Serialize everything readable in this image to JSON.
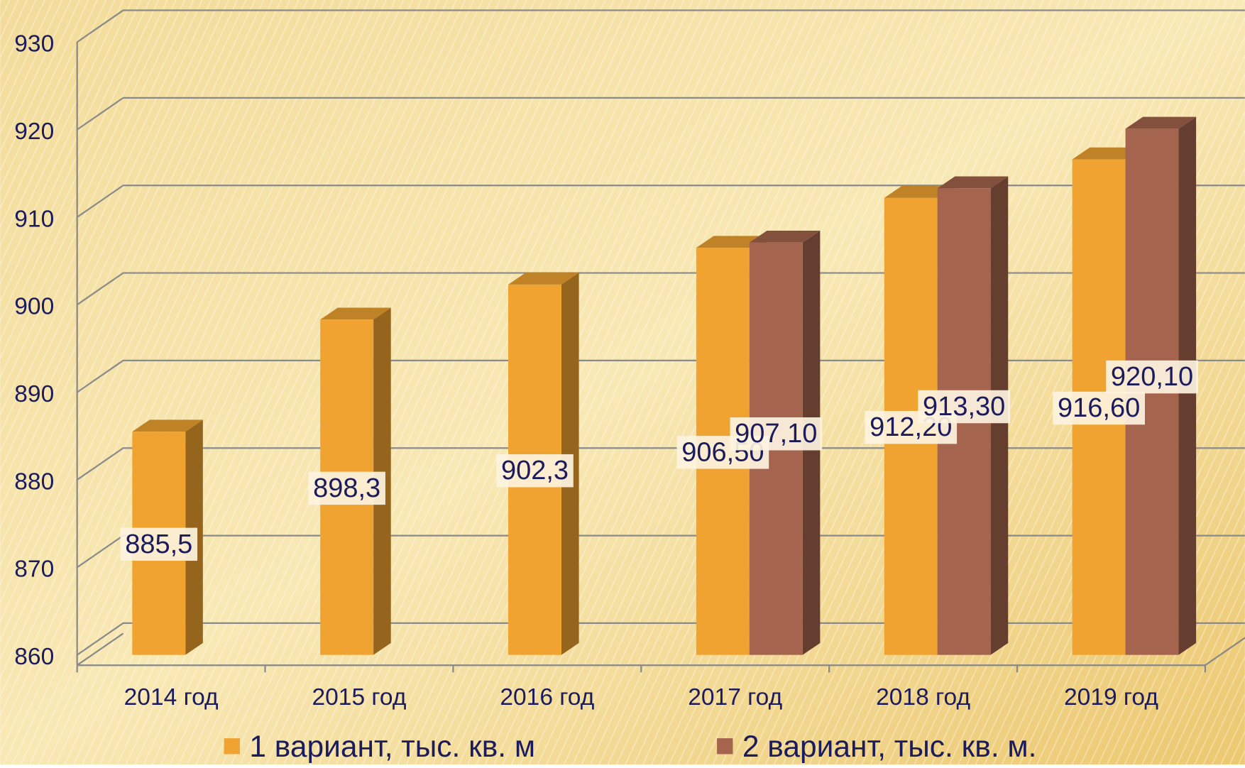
{
  "chart_data": {
    "type": "bar3d",
    "categories": [
      "2014 год",
      "2015 год",
      "2016 год",
      "2017 год",
      "2018 год",
      "2019 год"
    ],
    "series": [
      {
        "name": "1 вариант, тыс. кв. м",
        "color": "#f0a330",
        "values": [
          885.5,
          898.3,
          902.3,
          906.5,
          912.2,
          916.6
        ],
        "value_labels": [
          "885,5",
          "898,3",
          "902,3",
          "906,50",
          "912,20",
          "916,60"
        ]
      },
      {
        "name": "2 вариант, тыс. кв. м.",
        "color": "#a5644e",
        "values": [
          null,
          null,
          null,
          907.1,
          913.3,
          920.1
        ],
        "value_labels": [
          null,
          null,
          null,
          "907,10",
          "913,30",
          "920,10"
        ]
      }
    ],
    "ylim": [
      860,
      930
    ],
    "yticks": [
      860,
      870,
      880,
      890,
      900,
      910,
      920,
      930
    ],
    "grid": true,
    "legend": "bottom"
  }
}
